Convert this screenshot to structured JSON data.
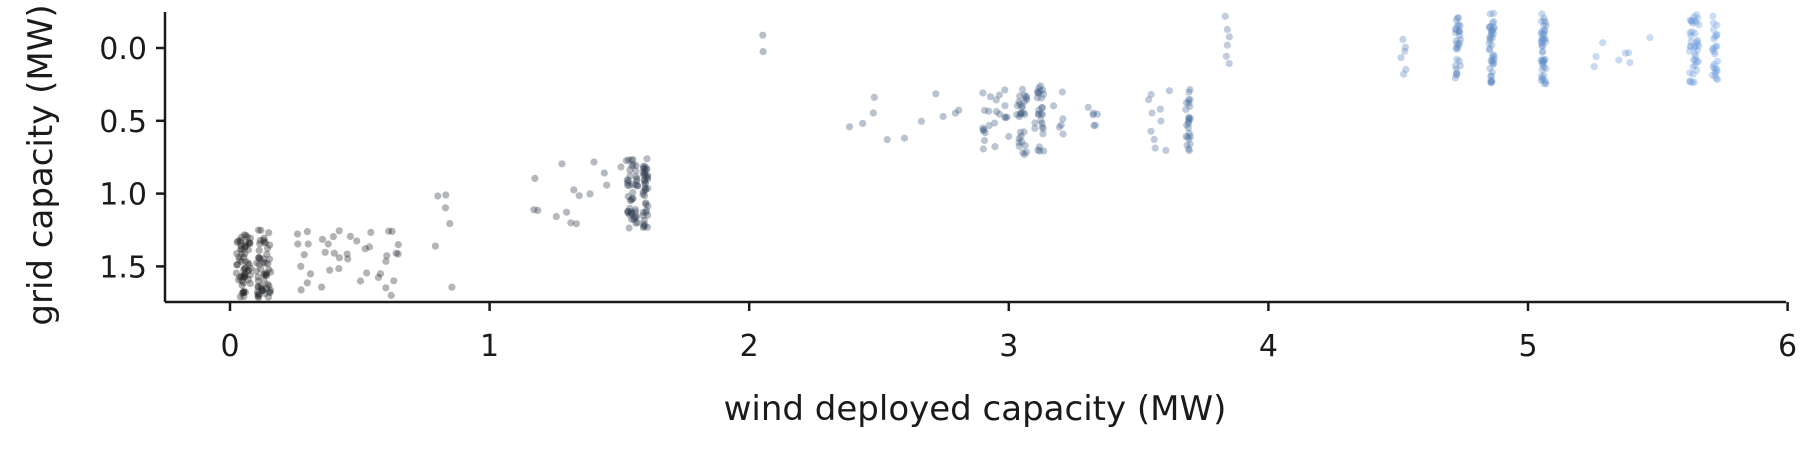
{
  "chart_data": {
    "type": "scatter",
    "title": "",
    "xlabel": "wind deployed capacity (MW)",
    "ylabel": "grid capacity (MW)",
    "xlim": [
      -0.25,
      6.0
    ],
    "ylim": [
      1.75,
      -0.25
    ],
    "y_inverted": true,
    "xticks": [
      0,
      1,
      2,
      3,
      4,
      5,
      6
    ],
    "xtick_labels": [
      "0",
      "1",
      "2",
      "3",
      "4",
      "5",
      "6"
    ],
    "yticks": [
      0.0,
      0.5,
      1.0,
      1.5
    ],
    "ytick_labels": [
      "0.0",
      "0.5",
      "1.0",
      "1.5"
    ],
    "grid": false,
    "legend": "none",
    "marker_alpha": 0.35,
    "color_ramp": {
      "low_x": "#1c1c1c",
      "mid_x": "#3d5a80",
      "high_x": "#6a9bdc"
    },
    "clusters": [
      {
        "x": 0.05,
        "x_spread": 0.03,
        "y_min": 1.28,
        "y_max": 1.72,
        "n": 60
      },
      {
        "x": 0.13,
        "x_spread": 0.03,
        "y_min": 1.25,
        "y_max": 1.72,
        "n": 55
      },
      {
        "x": 0.45,
        "x_spread": 0.2,
        "y_min": 1.25,
        "y_max": 1.72,
        "n": 40
      },
      {
        "x": 0.82,
        "x_spread": 0.06,
        "y_min": 0.8,
        "y_max": 1.65,
        "n": 6
      },
      {
        "x": 1.35,
        "x_spread": 0.18,
        "y_min": 0.75,
        "y_max": 1.25,
        "n": 16
      },
      {
        "x": 1.55,
        "x_spread": 0.02,
        "y_min": 0.76,
        "y_max": 1.24,
        "n": 45
      },
      {
        "x": 1.6,
        "x_spread": 0.01,
        "y_min": 0.76,
        "y_max": 1.24,
        "n": 40
      },
      {
        "x": 2.05,
        "x_spread": 0.01,
        "y_min": -0.25,
        "y_max": 0.15,
        "n": 2
      },
      {
        "x": 2.6,
        "x_spread": 0.35,
        "y_min": 0.27,
        "y_max": 0.7,
        "n": 14
      },
      {
        "x": 2.95,
        "x_spread": 0.05,
        "y_min": 0.28,
        "y_max": 0.72,
        "n": 20
      },
      {
        "x": 3.05,
        "x_spread": 0.02,
        "y_min": 0.26,
        "y_max": 0.74,
        "n": 30
      },
      {
        "x": 3.12,
        "x_spread": 0.02,
        "y_min": 0.26,
        "y_max": 0.72,
        "n": 28
      },
      {
        "x": 3.25,
        "x_spread": 0.1,
        "y_min": 0.27,
        "y_max": 0.68,
        "n": 12
      },
      {
        "x": 3.58,
        "x_spread": 0.05,
        "y_min": 0.29,
        "y_max": 0.72,
        "n": 10
      },
      {
        "x": 3.69,
        "x_spread": 0.01,
        "y_min": 0.27,
        "y_max": 0.72,
        "n": 25
      },
      {
        "x": 3.84,
        "x_spread": 0.01,
        "y_min": -0.23,
        "y_max": 0.22,
        "n": 6
      },
      {
        "x": 4.52,
        "x_spread": 0.01,
        "y_min": -0.12,
        "y_max": 0.2,
        "n": 6
      },
      {
        "x": 4.73,
        "x_spread": 0.01,
        "y_min": -0.24,
        "y_max": 0.22,
        "n": 30
      },
      {
        "x": 4.86,
        "x_spread": 0.01,
        "y_min": -0.24,
        "y_max": 0.24,
        "n": 40
      },
      {
        "x": 5.06,
        "x_spread": 0.01,
        "y_min": -0.24,
        "y_max": 0.25,
        "n": 45
      },
      {
        "x": 5.33,
        "x_spread": 0.15,
        "y_min": -0.2,
        "y_max": 0.23,
        "n": 8
      },
      {
        "x": 5.64,
        "x_spread": 0.02,
        "y_min": -0.24,
        "y_max": 0.25,
        "n": 40
      },
      {
        "x": 5.72,
        "x_spread": 0.01,
        "y_min": -0.24,
        "y_max": 0.22,
        "n": 25
      }
    ]
  }
}
